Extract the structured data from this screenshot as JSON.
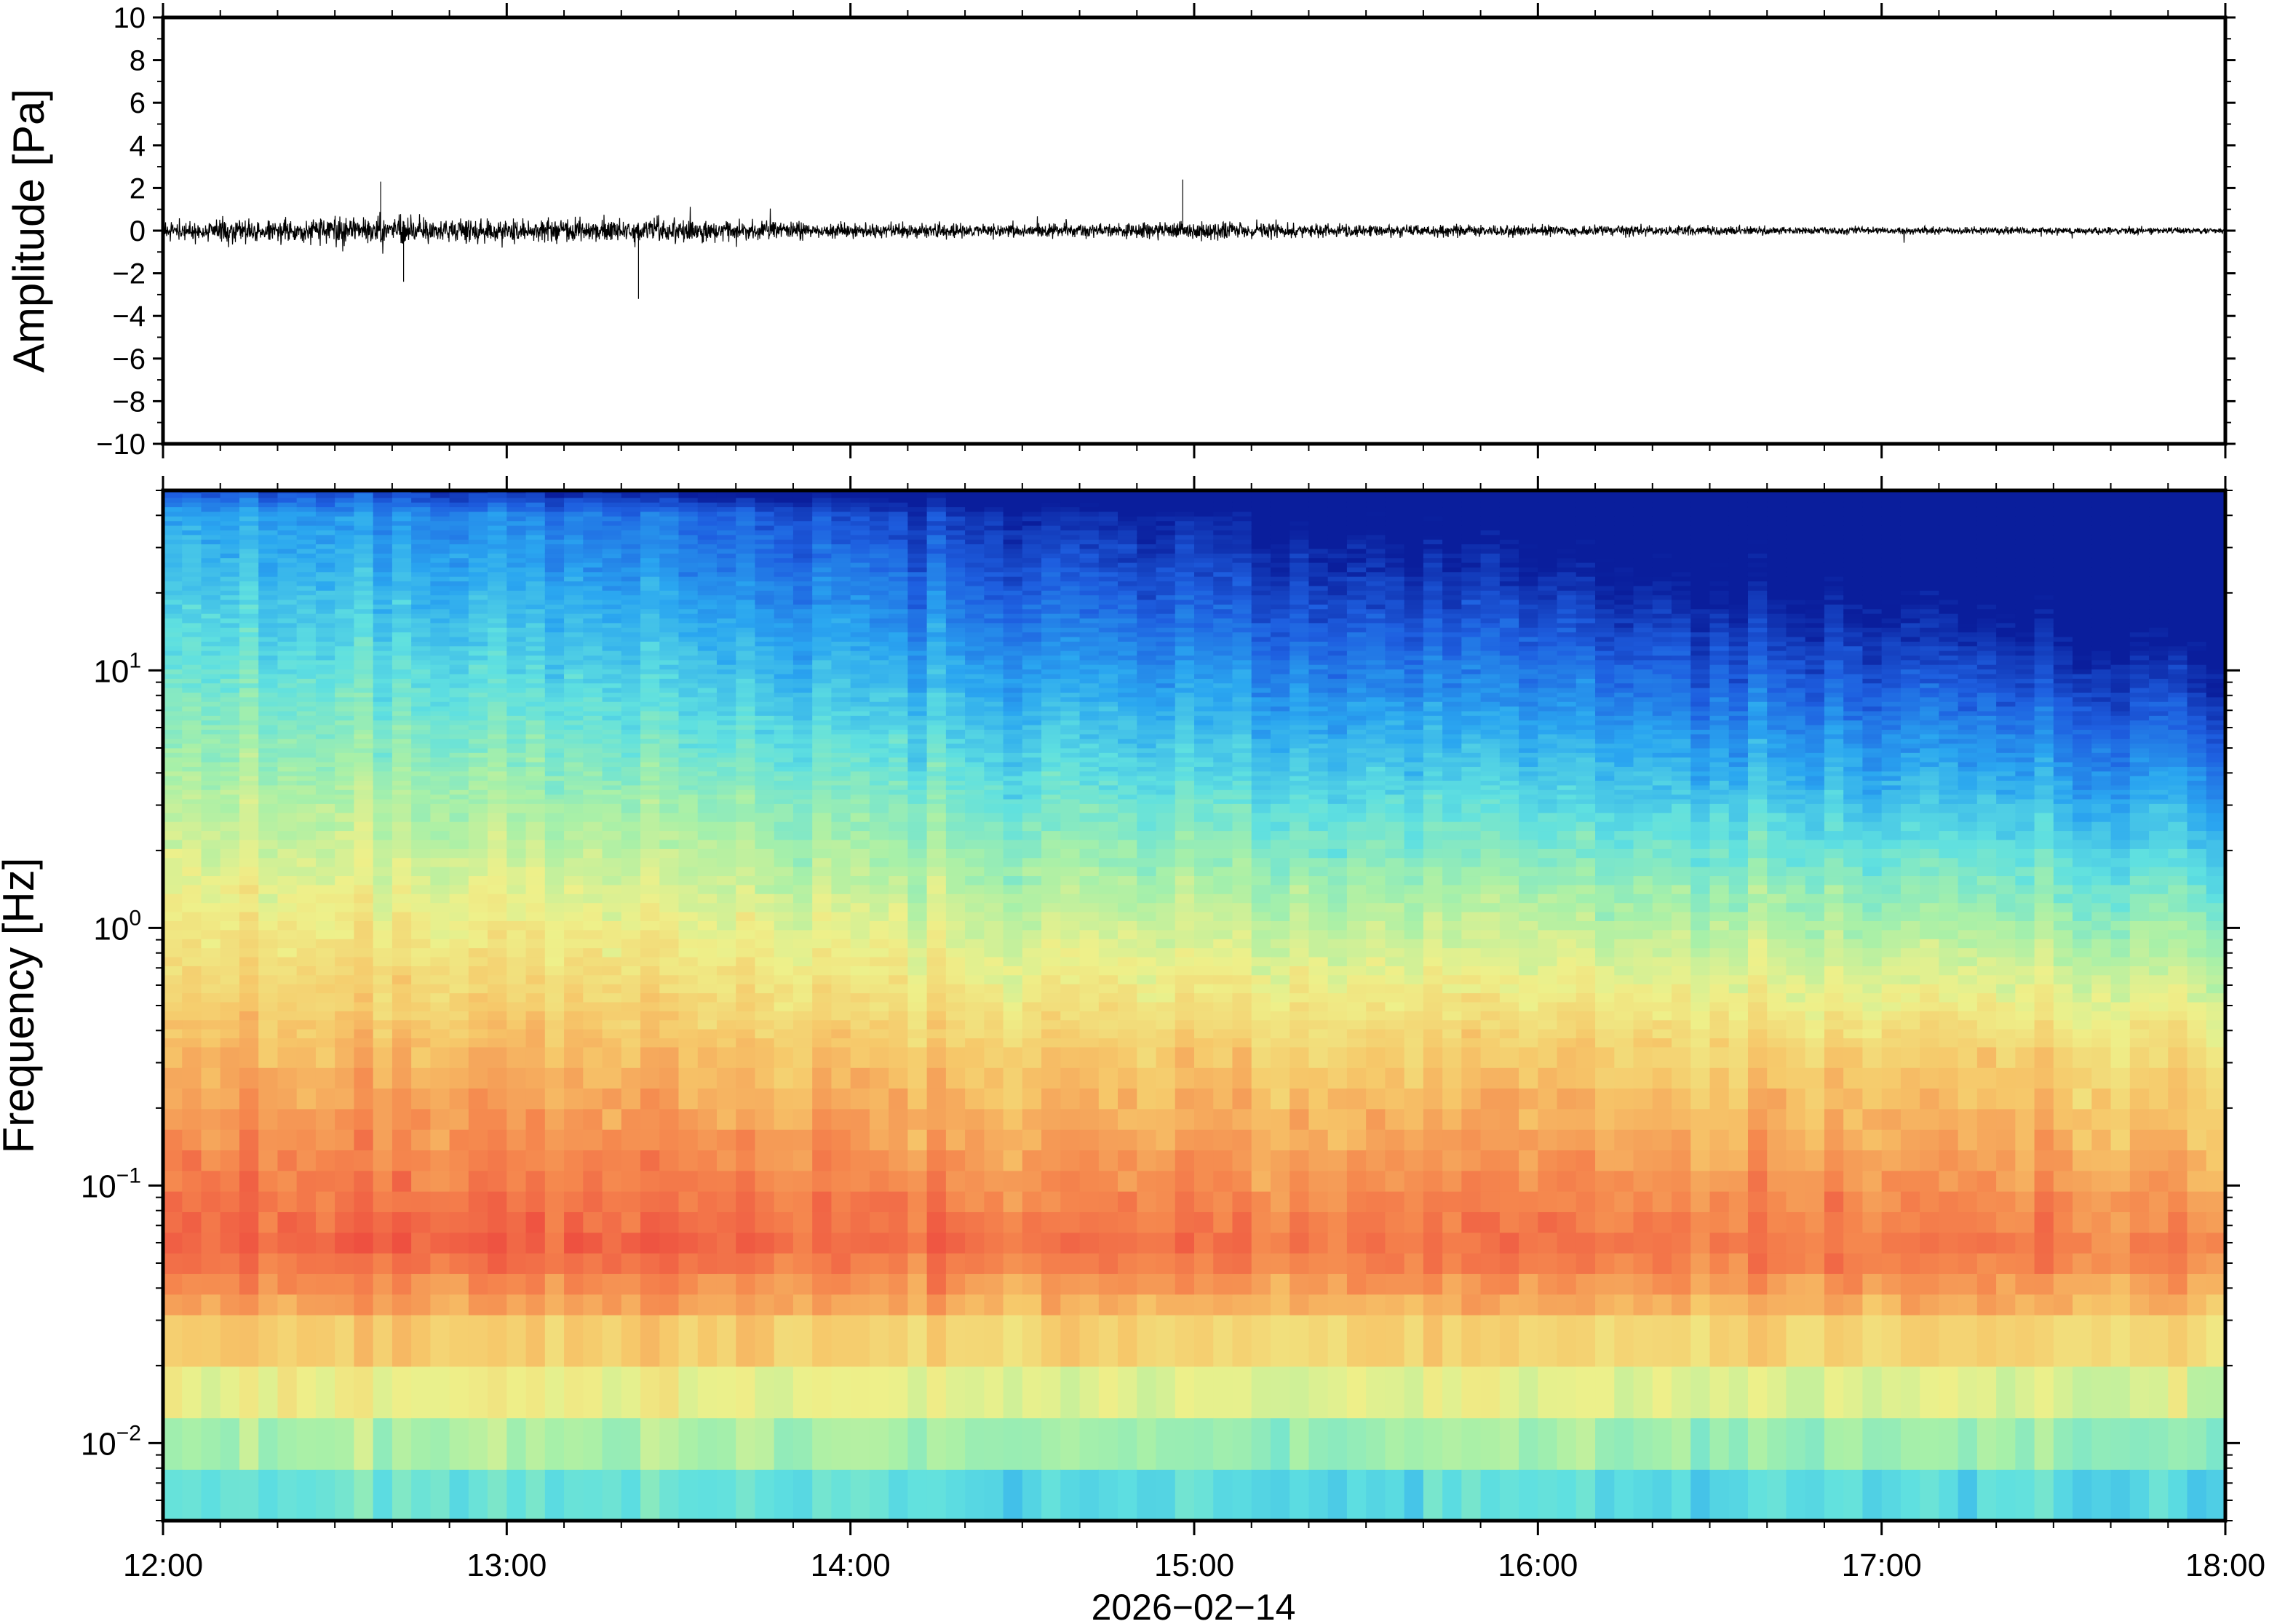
{
  "chart_data": [
    {
      "type": "line",
      "ylabel": "Amplitude [Pa]",
      "ylim": [
        -10,
        10
      ],
      "yticks": [
        {
          "value": 10,
          "label": "10"
        },
        {
          "value": 8,
          "label": "8"
        },
        {
          "value": 6,
          "label": "6"
        },
        {
          "value": 4,
          "label": "4"
        },
        {
          "value": 2,
          "label": "2"
        },
        {
          "value": 0,
          "label": "0"
        },
        {
          "value": -2,
          "label": "−2"
        },
        {
          "value": -4,
          "label": "−4"
        },
        {
          "value": -6,
          "label": "−6"
        },
        {
          "value": -8,
          "label": "−8"
        },
        {
          "value": -10,
          "label": "−10"
        }
      ],
      "xlim": [
        "12:00",
        "18:00"
      ],
      "envelope_hours": [
        12.0,
        12.5,
        13.0,
        13.5,
        14.0,
        14.5,
        15.0,
        15.5,
        16.0,
        16.5,
        17.0,
        17.5,
        18.0
      ],
      "envelope_pa": [
        0.8,
        1.1,
        1.0,
        0.9,
        0.6,
        0.55,
        0.75,
        0.5,
        0.45,
        0.4,
        0.3,
        0.3,
        0.25
      ],
      "peaks": [
        {
          "time": "12:38",
          "value": 2.3
        },
        {
          "time": "12:42",
          "value": -2.4
        },
        {
          "time": "13:23",
          "value": -3.2
        },
        {
          "time": "14:58",
          "value": 2.4
        }
      ],
      "color": "#000000"
    },
    {
      "type": "heatmap",
      "ylabel": "Frequency [Hz]",
      "yscale": "log",
      "ylim": [
        0.005,
        50
      ],
      "yticks": [
        {
          "value": 10,
          "base": "10",
          "exp": "1"
        },
        {
          "value": 1,
          "base": "10",
          "exp": "0"
        },
        {
          "value": 0.1,
          "base": "10",
          "exp": "−1"
        },
        {
          "value": 0.01,
          "base": "10",
          "exp": "−2"
        }
      ],
      "xlabel": "2026−02−14",
      "xticks": [
        "12:00",
        "13:00",
        "14:00",
        "15:00",
        "16:00",
        "17:00",
        "18:00"
      ],
      "colormap": [
        "#0a1e9c",
        "#1e5fe0",
        "#2aa6f0",
        "#5fe0e0",
        "#a8f0a8",
        "#eef08a",
        "#f6c86a",
        "#f5884e",
        "#ee5040"
      ],
      "peak_band_hz": [
        0.03,
        0.12
      ],
      "note_trend": "energy decreases with time"
    }
  ]
}
